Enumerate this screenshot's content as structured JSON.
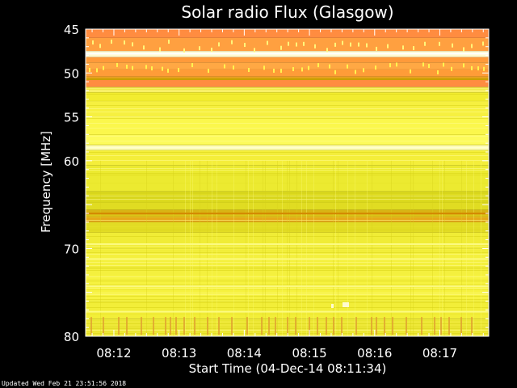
{
  "chart_data": {
    "type": "heatmap",
    "title": "Solar radio Flux (Glasgow)",
    "xlabel": "Start Time (04-Dec-14 08:11:34)",
    "ylabel": "Frequency [MHz]",
    "ylim": [
      45,
      80
    ],
    "y_inverted": true,
    "y_ticks": [
      45,
      50,
      55,
      60,
      70,
      80
    ],
    "x_ticks": [
      "08:12",
      "08:13",
      "08:14",
      "08:15",
      "08:16",
      "08:17"
    ],
    "x_tick_seconds_from_start": [
      26,
      86,
      146,
      206,
      266,
      326
    ],
    "x_range_seconds": [
      0,
      371
    ],
    "colors": {
      "background": "#000000",
      "axis": "#ffffff",
      "orange": "#ff8c28",
      "light_orange": "#ffa040",
      "gold": "#e0a000",
      "yellow": "#f6f02c",
      "pale_yellow": "#fdfb8a",
      "olive": "#d4d418"
    },
    "bands": [
      {
        "from": 45.0,
        "to": 46.0,
        "color": "#ff8c40"
      },
      {
        "from": 46.0,
        "to": 47.5,
        "color": "#ffa040"
      },
      {
        "from": 47.5,
        "to": 48.2,
        "color": "#fffbd0"
      },
      {
        "from": 48.2,
        "to": 48.8,
        "color": "#ff9a3a"
      },
      {
        "from": 48.8,
        "to": 49.6,
        "color": "#ffa844"
      },
      {
        "from": 49.6,
        "to": 50.4,
        "color": "#ff9c38"
      },
      {
        "from": 50.4,
        "to": 50.8,
        "color": "#e8a020"
      },
      {
        "from": 50.8,
        "to": 51.6,
        "color": "#ff8c40"
      },
      {
        "from": 51.6,
        "to": 52.2,
        "color": "#f8f068"
      },
      {
        "from": 52.2,
        "to": 53.2,
        "color": "#f2ec30"
      },
      {
        "from": 53.2,
        "to": 55.0,
        "color": "#f6f040"
      },
      {
        "from": 55.0,
        "to": 57.0,
        "color": "#fbf74c"
      },
      {
        "from": 57.0,
        "to": 58.2,
        "color": "#fdfb5c"
      },
      {
        "from": 58.2,
        "to": 58.8,
        "color": "#fefdb0"
      },
      {
        "from": 58.8,
        "to": 60.5,
        "color": "#f4ee3a"
      },
      {
        "from": 60.5,
        "to": 63.5,
        "color": "#ecea30"
      },
      {
        "from": 63.5,
        "to": 64.8,
        "color": "#d8d61c"
      },
      {
        "from": 64.8,
        "to": 65.6,
        "color": "#e0dc22"
      },
      {
        "from": 65.6,
        "to": 66.4,
        "color": "#d9b414"
      },
      {
        "from": 66.4,
        "to": 67.0,
        "color": "#e6a818"
      },
      {
        "from": 67.0,
        "to": 68.2,
        "color": "#e2dc24"
      },
      {
        "from": 68.2,
        "to": 70.0,
        "color": "#f0ec36"
      },
      {
        "from": 70.0,
        "to": 73.0,
        "color": "#f4f03e"
      },
      {
        "from": 73.0,
        "to": 76.0,
        "color": "#f6f240"
      },
      {
        "from": 76.0,
        "to": 78.0,
        "color": "#f2ee38"
      },
      {
        "from": 78.0,
        "to": 80.0,
        "color": "#eee838"
      }
    ],
    "lines": [
      {
        "freq": 47.8,
        "color": "#ffffff"
      },
      {
        "freq": 50.7,
        "color": "#c8a000"
      },
      {
        "freq": 58.5,
        "color": "#fefed0"
      },
      {
        "freq": 66.0,
        "color": "#d48a00"
      },
      {
        "freq": 69.5,
        "color": "#fcfa80"
      },
      {
        "freq": 71.2,
        "color": "#fcfa80"
      },
      {
        "freq": 74.3,
        "color": "#fcfa80"
      },
      {
        "freq": 77.2,
        "color": "#fcfa80"
      }
    ]
  },
  "footer": {
    "updated": "Updated Wed Feb 21 23:51:56 2018"
  }
}
